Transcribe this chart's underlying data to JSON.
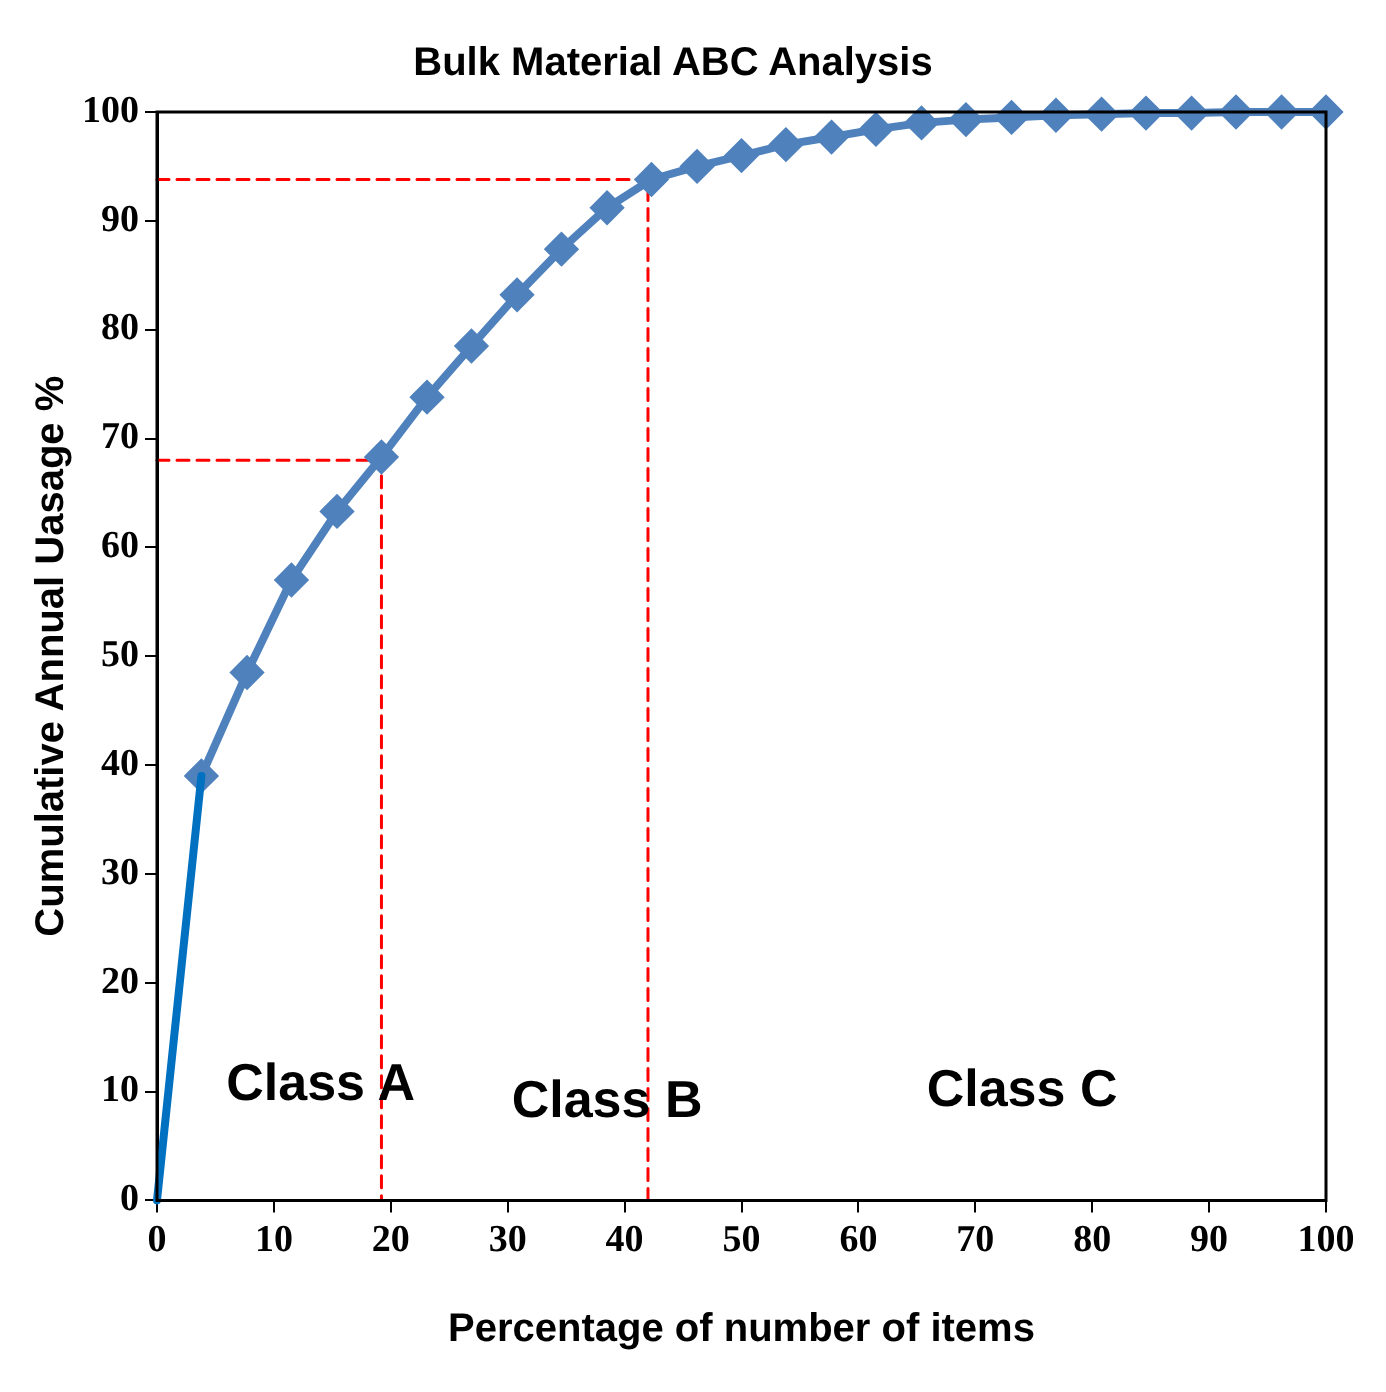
{
  "chart_data": {
    "type": "line",
    "title": "Bulk Material ABC Analysis",
    "xlabel": "Percentage of number of items",
    "ylabel": "Cumulative Annual Uasage %",
    "xlim": [
      0,
      100
    ],
    "xticks": [
      0,
      10,
      20,
      30,
      40,
      50,
      60,
      70,
      80,
      90,
      100
    ],
    "ylim": [
      0,
      100
    ],
    "yticks": [
      0,
      10,
      20,
      30,
      40,
      50,
      60,
      70,
      80,
      90,
      100
    ],
    "grid": false,
    "legend": false,
    "series": [
      {
        "color": "#0070c0",
        "marker": "none",
        "line_style": "solid",
        "x": [
          0,
          3.8
        ],
        "values": [
          0,
          39
        ]
      },
      {
        "color": "#4f81bd",
        "marker": "diamond",
        "line_style": "solid",
        "x": [
          3.8,
          7.7,
          11.5,
          15.4,
          19.2,
          23.1,
          26.9,
          30.8,
          34.6,
          38.5,
          42.3,
          46.2,
          50,
          53.8,
          57.7,
          61.5,
          65.4,
          69.2,
          73.1,
          76.9,
          80.8,
          84.6,
          88.5,
          92.3,
          96.2,
          100
        ],
        "values": [
          39,
          48.5,
          57,
          63.3,
          68.3,
          73.8,
          78.5,
          83.2,
          87.4,
          91.2,
          93.8,
          95,
          96,
          97,
          97.7,
          98.4,
          99,
          99.3,
          99.5,
          99.7,
          99.8,
          99.9,
          99.9,
          100,
          100,
          100
        ]
      },
      {
        "color": "#ff0000",
        "marker": "none",
        "line_style": "dashed",
        "x": [
          0,
          19.2,
          19.2
        ],
        "values": [
          68,
          68,
          0
        ]
      },
      {
        "color": "#ff0000",
        "marker": "none",
        "line_style": "dashed",
        "x": [
          0,
          42,
          42
        ],
        "values": [
          93.8,
          93.8,
          0
        ]
      }
    ],
    "annotations": [
      "Class A",
      "Class B",
      "Class C"
    ]
  }
}
